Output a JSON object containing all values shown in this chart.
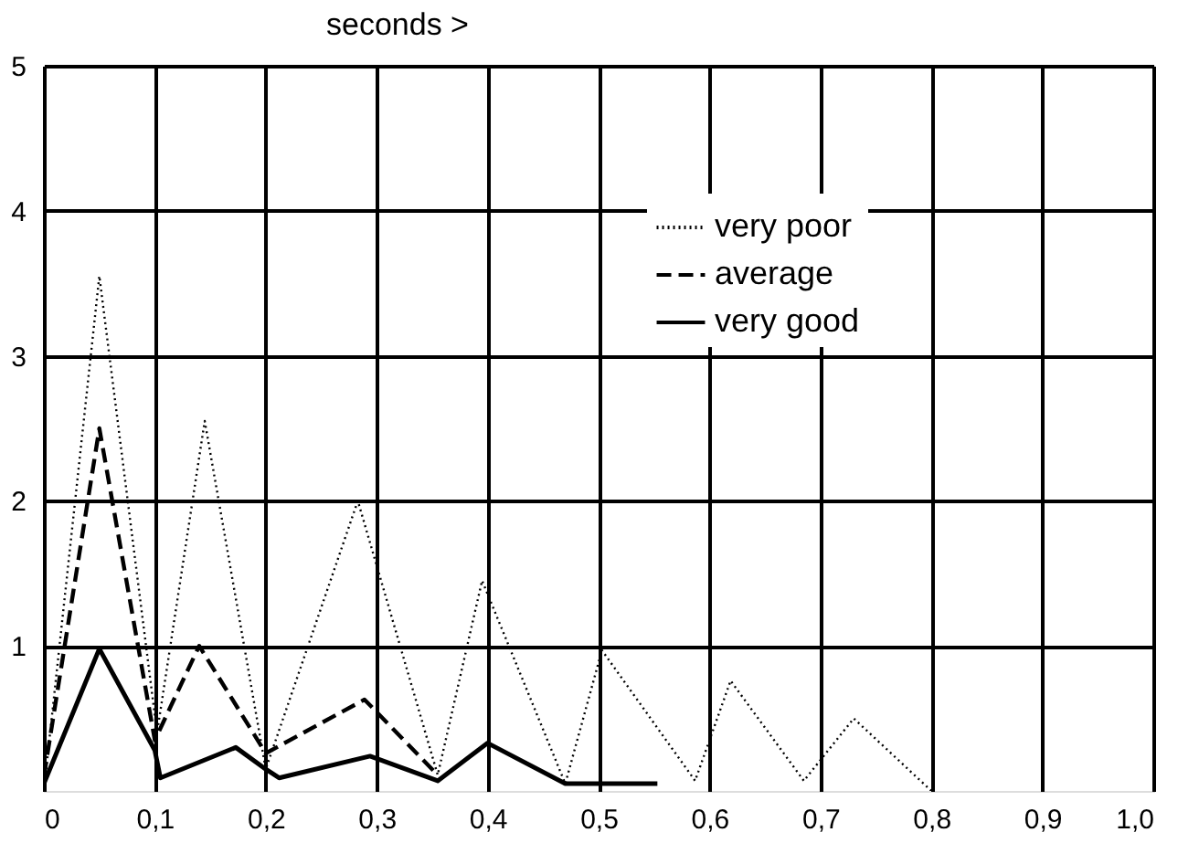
{
  "chart_data": {
    "type": "line",
    "xlabel": "seconds >",
    "xlim": [
      0,
      1.0
    ],
    "xticks": [
      0,
      {
        "value": 0.1,
        "label": "0,1"
      },
      {
        "value": 0.2,
        "label": "0,2"
      },
      {
        "value": 0.3,
        "label": "0,3"
      },
      {
        "value": 0.4,
        "label": "0,4"
      },
      {
        "value": 0.5,
        "label": "0,5"
      },
      {
        "value": 0.6,
        "label": "0,6"
      },
      {
        "value": 0.7,
        "label": "0,7"
      },
      {
        "value": 0.8,
        "label": "0,8"
      },
      {
        "value": 0.9,
        "label": "0,9"
      },
      {
        "value": 1.0,
        "label": "1,0"
      }
    ],
    "ylim": [
      0,
      5
    ],
    "yticks": [
      1,
      2,
      3,
      4,
      5
    ],
    "grid": true,
    "legend": "top right",
    "marker": "none",
    "series": [
      {
        "name": "very poor",
        "color": "#000000",
        "line_style": "dotted",
        "x": [
          0,
          0.05,
          0.102,
          0.145,
          0.2,
          0.283,
          0.355,
          0.395,
          0.47,
          0.503,
          0.587,
          0.619,
          0.685,
          0.73,
          0.8
        ],
        "values": [
          0,
          3.55,
          0.4,
          2.55,
          0.15,
          2.0,
          0.11,
          1.45,
          0.05,
          0.97,
          0.07,
          0.76,
          0.07,
          0.5,
          0
        ]
      },
      {
        "name": "average",
        "color": "#000000",
        "line_style": "dashed",
        "x": [
          0,
          0.05,
          0.1,
          0.14,
          0.2,
          0.289,
          0.355
        ],
        "values": [
          0.1,
          2.5,
          0.35,
          1.0,
          0.26,
          0.63,
          0.11
        ]
      },
      {
        "name": "very good",
        "color": "#000000",
        "line_style": "solid",
        "x": [
          0,
          0.05,
          0.1,
          0.105,
          0.173,
          0.2,
          0.212,
          0.294,
          0.355,
          0.4,
          0.47,
          0.553
        ],
        "values": [
          0.05,
          0.98,
          0.28,
          0.09,
          0.3,
          0.15,
          0.09,
          0.24,
          0.07,
          0.33,
          0.05,
          0.05
        ]
      }
    ]
  }
}
